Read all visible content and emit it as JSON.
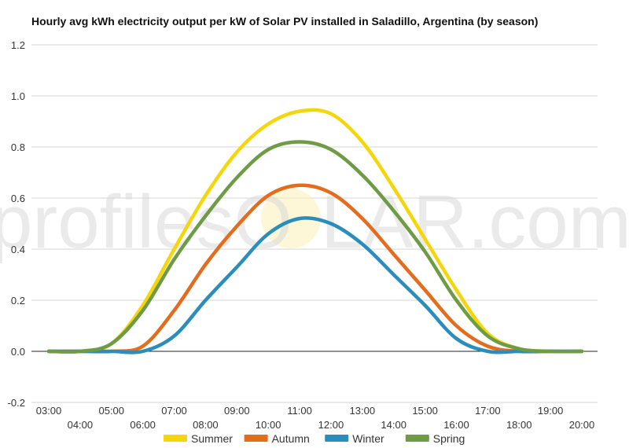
{
  "watermark": {
    "left": "profilesO",
    "right": "LAR.com"
  },
  "chart_data": {
    "type": "line",
    "title": "Hourly avg kWh electricity output per kW of Solar PV installed in Saladillo, Argentina (by season)",
    "xlabel": "",
    "ylabel": "",
    "ylim": [
      -0.2,
      1.2
    ],
    "yticks": [
      "-0.2",
      "0.0",
      "0.2",
      "0.4",
      "0.6",
      "0.8",
      "1.0",
      "1.2"
    ],
    "x": [
      "03:00",
      "04:00",
      "05:00",
      "06:00",
      "07:00",
      "08:00",
      "09:00",
      "10:00",
      "11:00",
      "12:00",
      "13:00",
      "14:00",
      "15:00",
      "16:00",
      "17:00",
      "18:00",
      "19:00",
      "20:00"
    ],
    "grid": true,
    "legend_position": "bottom",
    "series": [
      {
        "name": "Summer",
        "color": "#f5d60a",
        "values": [
          0.0,
          0.0,
          0.03,
          0.18,
          0.4,
          0.61,
          0.78,
          0.89,
          0.94,
          0.93,
          0.82,
          0.64,
          0.44,
          0.24,
          0.07,
          0.01,
          0.0,
          0.0
        ]
      },
      {
        "name": "Autumn",
        "color": "#e36c1d",
        "values": [
          0.0,
          0.0,
          0.0,
          0.02,
          0.16,
          0.34,
          0.49,
          0.61,
          0.65,
          0.62,
          0.52,
          0.38,
          0.24,
          0.1,
          0.02,
          0.0,
          0.0,
          0.0
        ]
      },
      {
        "name": "Winter",
        "color": "#2a8dbc",
        "values": [
          0.0,
          0.0,
          0.0,
          0.0,
          0.06,
          0.2,
          0.33,
          0.46,
          0.52,
          0.5,
          0.42,
          0.3,
          0.18,
          0.05,
          0.0,
          0.0,
          0.0,
          0.0
        ]
      },
      {
        "name": "Spring",
        "color": "#6e9b45",
        "values": [
          0.0,
          0.0,
          0.03,
          0.16,
          0.36,
          0.53,
          0.68,
          0.79,
          0.82,
          0.79,
          0.69,
          0.55,
          0.39,
          0.2,
          0.06,
          0.01,
          0.0,
          0.0
        ]
      }
    ]
  }
}
